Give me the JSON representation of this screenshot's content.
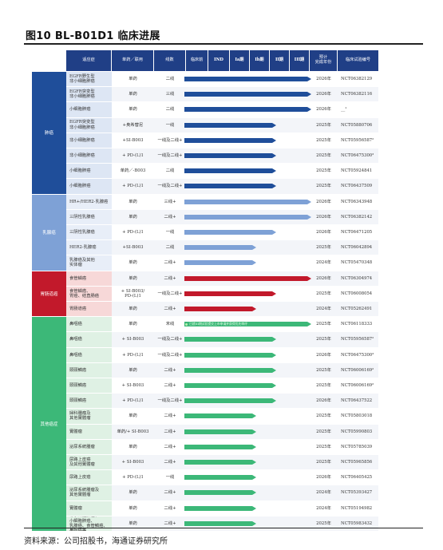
{
  "figure": {
    "title": "图10 BL-B01D1 临床进展",
    "source": "资料来源：公司招股书，海通证券研究所"
  },
  "header": {
    "indication": "适应症",
    "mode": "单药／联用",
    "line": "线数",
    "phase_preclinical": "临床前",
    "phase_ind": "IND",
    "phase_1a": "Ia期",
    "phase_1b": "Ib期",
    "phase_2": "II期",
    "phase_3": "III期",
    "year": "预计\n完成年份",
    "nct": "临床试验编号"
  },
  "colors": {
    "header": "#203f86",
    "lung": "#1f4e9a",
    "breast": "#7ea1d6",
    "esophageal": "#c2192b",
    "other": "#3cb878",
    "lung_row": "#dde6f4",
    "breast_row": "#e8eef8",
    "esophageal_row": "#f7d8d8",
    "other_row": "#dff1e4"
  },
  "categories": [
    {
      "key": "lung",
      "label": "肺癌"
    },
    {
      "key": "breast",
      "label": "乳腺癌"
    },
    {
      "key": "esophageal",
      "label": "胃肠道癌"
    },
    {
      "key": "other",
      "label": "其他癌症"
    }
  ],
  "rows": [
    {
      "cat": "lung",
      "indication": "EGFR野生型\n非小细胞肺癌",
      "mode": "单药",
      "line": "二线",
      "progress_phase": 5,
      "year": "2026年",
      "nct": "NCT06382129"
    },
    {
      "cat": "lung",
      "indication": "EGFR突变型\n非小细胞肺癌",
      "mode": "单药",
      "line": "三线",
      "progress_phase": 5,
      "year": "2026年",
      "nct": "NCT06382116"
    },
    {
      "cat": "lung",
      "indication": "小细胞肺癌",
      "mode": "单药",
      "line": "二线",
      "progress_phase": 5,
      "year": "2026年",
      "nct": "__¹"
    },
    {
      "cat": "lung",
      "indication": "EGFR突变型\n非小细胞肺癌",
      "mode": "+奥希替尼",
      "line": "一线",
      "progress_phase": 4,
      "year": "2025年",
      "nct": "NCT05880706"
    },
    {
      "cat": "lung",
      "indication": "非小细胞肺癌",
      "mode": "+SI-B003",
      "line": "一线及二线+",
      "progress_phase": 4,
      "year": "2025年",
      "nct": "NCT05956587²"
    },
    {
      "cat": "lung",
      "indication": "非小细胞肺癌",
      "mode": "+ PD-(L)1",
      "line": "一线及二线+",
      "progress_phase": 4,
      "year": "2025年",
      "nct": "NCT06475300³"
    },
    {
      "cat": "lung",
      "indication": "小细胞肺癌",
      "mode": "单药／-B003",
      "line": "二线",
      "progress_phase": 4,
      "year": "2025年",
      "nct": "NCT05924841"
    },
    {
      "cat": "lung",
      "indication": "小细胞肺癌",
      "mode": "+ PD-(L)1",
      "line": "一线及二线+",
      "progress_phase": 4,
      "year": "2025年",
      "nct": "NCT06437509"
    },
    {
      "cat": "breast",
      "indication": "HR+/HER2-乳腺癌",
      "mode": "单药",
      "line": "三线+",
      "progress_phase": 5,
      "year": "2026年",
      "nct": "NCT06343948"
    },
    {
      "cat": "breast",
      "indication": "三阴性乳腺癌",
      "mode": "单药",
      "line": "二线+",
      "progress_phase": 5,
      "year": "2026年",
      "nct": "NCT06382142"
    },
    {
      "cat": "breast",
      "indication": "三阴性乳腺癌",
      "mode": "+ PD-(L)1",
      "line": "一线",
      "progress_phase": 4,
      "year": "2026年",
      "nct": "NCT06471205"
    },
    {
      "cat": "breast",
      "indication": "HER2-乳腺癌",
      "mode": "+SI-B003",
      "line": "二线",
      "progress_phase": 3,
      "year": "2025年",
      "nct": "NCT06042894"
    },
    {
      "cat": "breast",
      "indication": "乳腺癌及其他\n实体瘤",
      "mode": "单药",
      "line": "二线+",
      "progress_phase": 3,
      "year": "2024年",
      "nct": "NCT05470348"
    },
    {
      "cat": "esophageal",
      "indication": "食管鳞癌",
      "mode": "单药",
      "line": "二线+",
      "progress_phase": 5,
      "year": "2026年",
      "nct": "NCT06304974"
    },
    {
      "cat": "esophageal",
      "indication": "食管鳞癌、\n胃癌、结直肠癌",
      "mode": "+ SI-B003/\nPD-(L)1",
      "line": "一线及二线+",
      "progress_phase": 4,
      "year": "2025年",
      "nct": "NCT06008054"
    },
    {
      "cat": "esophageal",
      "indication": "胃肠道癌",
      "mode": "单药",
      "line": "二线+",
      "progress_phase": 3,
      "year": "2024年",
      "nct": "NCT05262491"
    },
    {
      "cat": "other",
      "indication": "鼻咽癌",
      "mode": "单药",
      "line": "末线",
      "progress_phase": 5,
      "year": "2025年",
      "nct": "NCT06118333",
      "bar_note": "已就III期试验提交上市申请并获得优先审评"
    },
    {
      "cat": "other",
      "indication": "鼻咽癌",
      "mode": "+ SI-B003",
      "line": "一线及二线+",
      "progress_phase": 4,
      "year": "2025年",
      "nct": "NCT05956587²"
    },
    {
      "cat": "other",
      "indication": "鼻咽癌",
      "mode": "+ PD-(L)1",
      "line": "一线及二线+",
      "progress_phase": 4,
      "year": "2026年",
      "nct": "NCT06475300³"
    },
    {
      "cat": "other",
      "indication": "頭頸鱗癌",
      "mode": "单药",
      "line": "二线+",
      "progress_phase": 4,
      "year": "2025年",
      "nct": "NCT06006169²"
    },
    {
      "cat": "other",
      "indication": "頭頸鱗癌",
      "mode": "+ SI-B003",
      "line": "二线+",
      "progress_phase": 4,
      "year": "2025年",
      "nct": "NCT06006169²"
    },
    {
      "cat": "other",
      "indication": "頭頸鱗癌",
      "mode": "+ PD-(L)1",
      "line": "一线及二线+",
      "progress_phase": 4,
      "year": "2026年",
      "nct": "NCT06437522"
    },
    {
      "cat": "other",
      "indication": "婦科腫瘤及\n其他實體瘤",
      "mode": "单药",
      "line": "二线+",
      "progress_phase": 3,
      "year": "2025年",
      "nct": "NCT05803018"
    },
    {
      "cat": "other",
      "indication": "實體瘤",
      "mode": "单药/+ SI-B003",
      "line": "二线+",
      "progress_phase": 3,
      "year": "2025年",
      "nct": "NCT05990803"
    },
    {
      "cat": "other",
      "indication": "泌尿系統腫瘤",
      "mode": "单药",
      "line": "二线+",
      "progress_phase": 3,
      "year": "2025年",
      "nct": "NCT05785039"
    },
    {
      "cat": "other",
      "indication": "尿路上皮癌\n及其他實體瘤",
      "mode": "+ SI-B003",
      "line": "二线+",
      "progress_phase": 3,
      "year": "2025年",
      "nct": "NCT05965856"
    },
    {
      "cat": "other",
      "indication": "尿路上皮癌",
      "mode": "+ PD-(L)1",
      "line": "一线",
      "progress_phase": 3,
      "year": "2026年",
      "nct": "NCT06405425"
    },
    {
      "cat": "other",
      "indication": "泌尿系統腫瘤及\n其他實體瘤",
      "mode": "单药",
      "line": "二线+",
      "progress_phase": 3,
      "year": "2024年",
      "nct": "NCT05393427"
    },
    {
      "cat": "other",
      "indication": "實體瘤",
      "mode": "单药",
      "line": "二线+",
      "progress_phase": 3,
      "year": "2024年",
      "nct": "NCT05194982"
    },
    {
      "cat": "other",
      "indication": "非小細胞肺癌、\n小細胞肺癌、\n乳腺癌、食管鱗癌、\n鼻咽癌等",
      "mode": "单药",
      "line": "二线+",
      "progress_phase": 3,
      "year": "2025年",
      "nct": "NCT05983432"
    }
  ]
}
